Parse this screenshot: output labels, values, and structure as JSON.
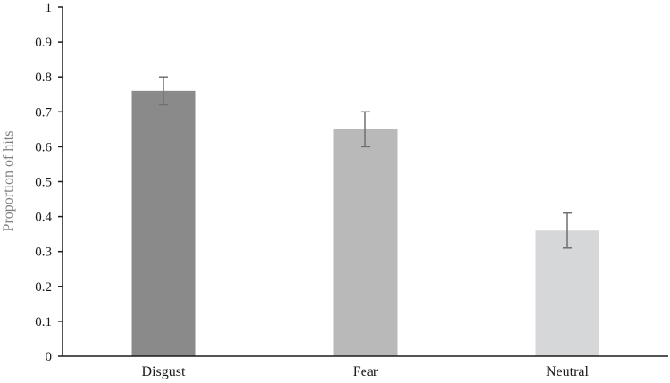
{
  "chart_data": {
    "type": "bar",
    "categories": [
      "Disgust",
      "Fear",
      "Neutral"
    ],
    "values": [
      0.76,
      0.65,
      0.36
    ],
    "errors": [
      0.04,
      0.05,
      0.05
    ],
    "bar_colors": [
      "#8a8a8b",
      "#b9b9ba",
      "#d6d7d9"
    ],
    "error_bar_color": "#6f6f6f",
    "title": "",
    "xlabel": "",
    "ylabel": "Proportion of hits",
    "ylim": [
      0,
      1
    ],
    "yticks": [
      0,
      0.1,
      0.2,
      0.3,
      0.4,
      0.5,
      0.6,
      0.7,
      0.8,
      0.9,
      1
    ],
    "ytick_labels": [
      "0",
      "0.1",
      "0.2",
      "0.3",
      "0.4",
      "0.5",
      "0.6",
      "0.7",
      "0.8",
      "0.9",
      "1"
    ],
    "grid": false,
    "legend": false
  }
}
